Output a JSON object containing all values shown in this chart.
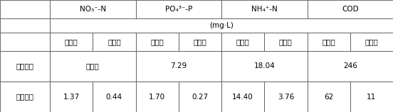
{
  "col_headers": [
    "NO₃⁻-N",
    "PO₄³⁻-P",
    "NH₄⁺-N",
    "COD"
  ],
  "unit_row": "(mg·L)",
  "sub_headers": [
    "改造前",
    "改造后"
  ],
  "row_labels": [
    "湿地进水",
    "湿地出水"
  ],
  "row1_data": [
    "未检出",
    "7.29",
    "18.04",
    "246"
  ],
  "row2_data": [
    "1.37",
    "0.44",
    "1.70",
    "0.27",
    "14.40",
    "3.76",
    "62",
    "11"
  ],
  "bg_color": "#ffffff",
  "text_color": "#000000",
  "border_color": "#555555",
  "font_size": 7.5,
  "header_font_size": 7.5,
  "lw": 0.6
}
